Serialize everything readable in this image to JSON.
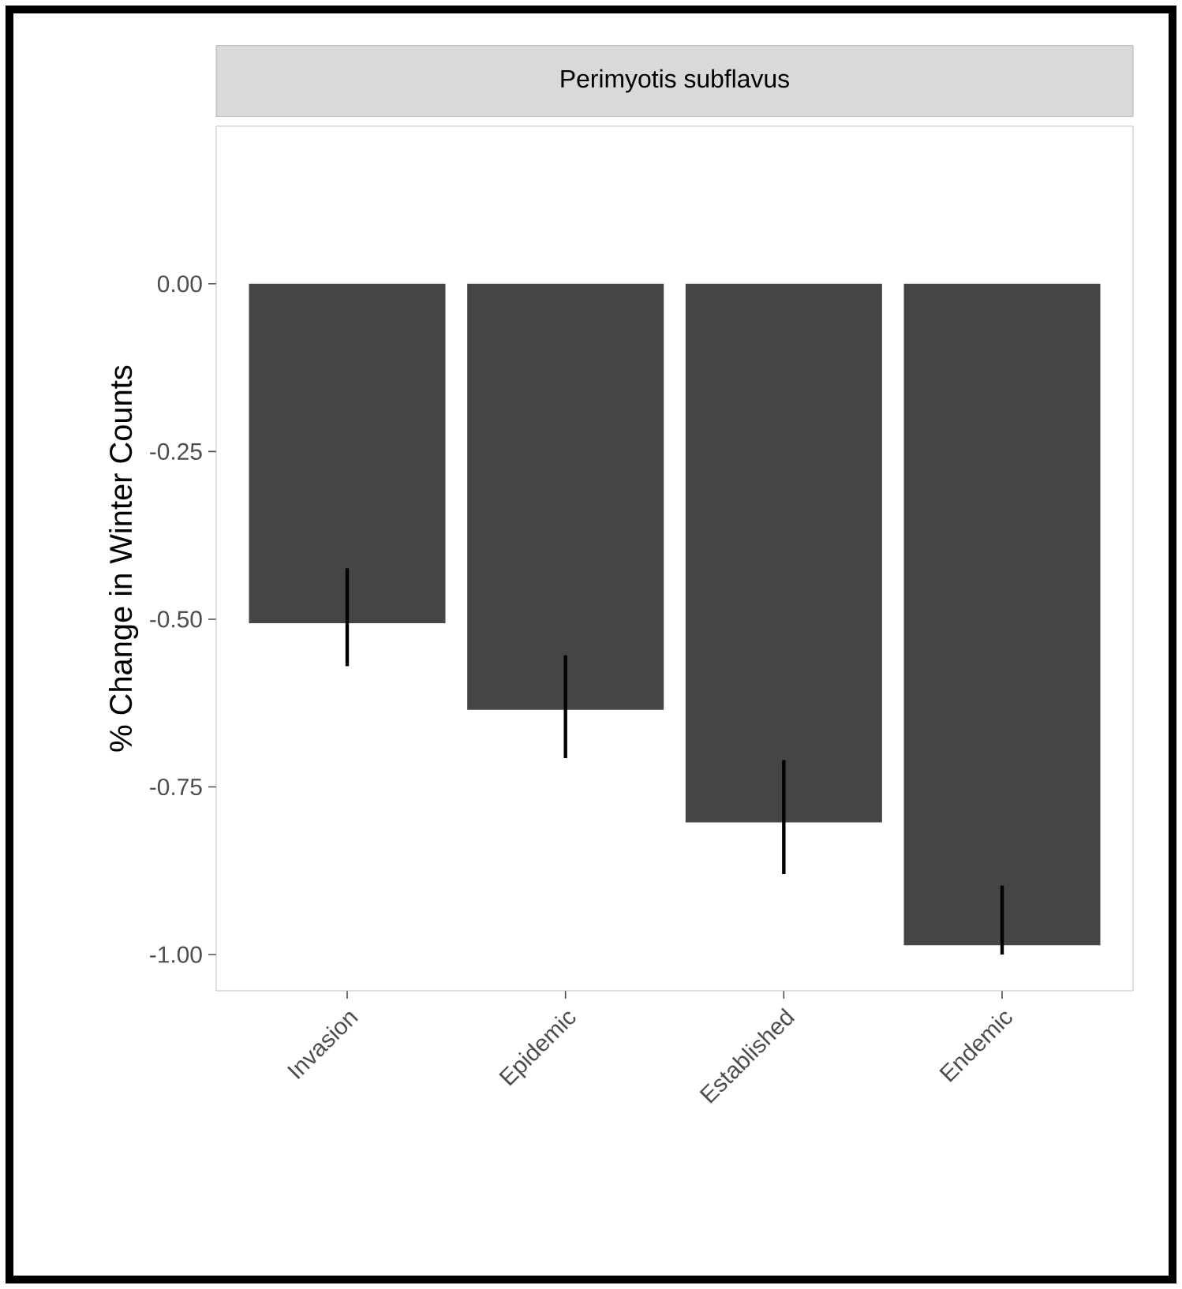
{
  "chart_data": {
    "type": "bar",
    "title": "Perimyotis subflavus",
    "ylabel": "% Change in Winter Counts",
    "categories": [
      "Invasion",
      "Epidemic",
      "Established",
      "Endemic"
    ],
    "values": [
      -0.506,
      -0.635,
      -0.803,
      -0.986
    ],
    "errors": [
      [
        -0.57,
        -0.424
      ],
      [
        -0.707,
        -0.554
      ],
      [
        -0.88,
        -0.71
      ],
      [
        -1.0,
        -0.897
      ]
    ],
    "color": "#454545",
    "ylim": [
      -1.054,
      0.235
    ],
    "yticks": [
      {
        "value": -1,
        "label": "-1.00"
      },
      {
        "value": -0.75,
        "label": "-0.75"
      },
      {
        "value": -0.5,
        "label": "-0.50"
      },
      {
        "value": -0.25,
        "label": "-0.25"
      },
      {
        "value": 0,
        "label": "0.00"
      }
    ],
    "grid": false
  }
}
